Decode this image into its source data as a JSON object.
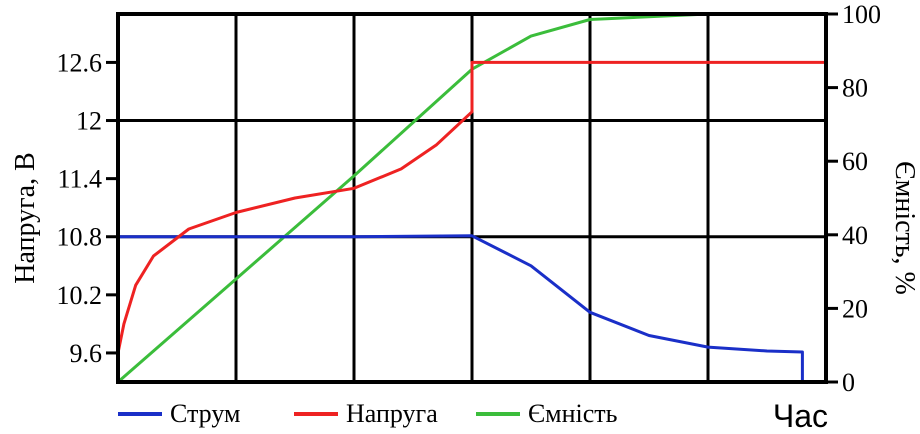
{
  "chart_data": {
    "type": "line",
    "xlabel": "Час",
    "ylabel_left": "Напруга, В",
    "ylabel_right": "Ємність, %",
    "x_divisions": 6,
    "ylim_left": [
      9.3,
      13.1
    ],
    "yticks_left": [
      9.6,
      10.2,
      10.8,
      11.4,
      12,
      12.6
    ],
    "ytick_labels_left": [
      "9.6",
      "10.2",
      "10.8",
      "11.4",
      "12",
      "12.6"
    ],
    "ylim_right": [
      0,
      100
    ],
    "yticks_right": [
      0,
      20,
      40,
      60,
      80,
      100
    ],
    "ytick_labels_right": [
      "0",
      "20",
      "40",
      "60",
      "80",
      "100"
    ],
    "grid": true,
    "legend_position": "bottom",
    "series": [
      {
        "name": "Струм",
        "color": "#1a2fc8",
        "axis": "left",
        "points": [
          [
            0,
            10.8
          ],
          [
            1,
            10.8
          ],
          [
            2,
            10.8
          ],
          [
            3,
            10.81
          ],
          [
            3.5,
            10.5
          ],
          [
            4,
            10.02
          ],
          [
            4.5,
            9.78
          ],
          [
            5,
            9.66
          ],
          [
            5.5,
            9.62
          ],
          [
            5.8,
            9.61
          ],
          [
            5.8,
            9.29
          ]
        ]
      },
      {
        "name": "Напруга",
        "color": "#ee2222",
        "axis": "left",
        "points": [
          [
            0,
            9.6
          ],
          [
            0.05,
            9.9
          ],
          [
            0.15,
            10.3
          ],
          [
            0.3,
            10.6
          ],
          [
            0.6,
            10.88
          ],
          [
            1,
            11.05
          ],
          [
            1.5,
            11.2
          ],
          [
            2,
            11.3
          ],
          [
            2.4,
            11.5
          ],
          [
            2.7,
            11.75
          ],
          [
            3,
            12.09
          ],
          [
            3,
            12.6
          ],
          [
            6,
            12.6
          ]
        ]
      },
      {
        "name": "Ємність",
        "color": "#3bbd3b",
        "axis": "right",
        "points": [
          [
            0,
            0
          ],
          [
            1,
            28
          ],
          [
            2,
            56
          ],
          [
            3,
            85
          ],
          [
            3.5,
            94
          ],
          [
            4,
            98.5
          ],
          [
            5,
            100
          ],
          [
            6,
            100
          ]
        ]
      }
    ]
  }
}
